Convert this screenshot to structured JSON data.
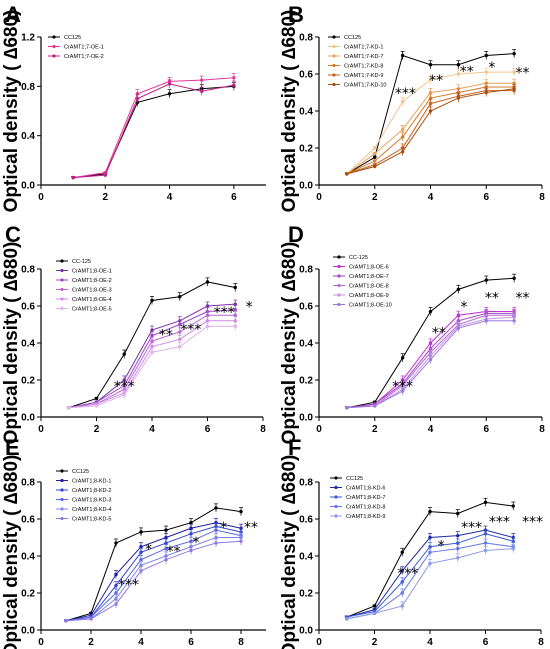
{
  "chart_data": [
    {
      "panel": "A",
      "type": "line",
      "ylabel": "Optical density ( ∆680)",
      "xticks": [
        0,
        2,
        4,
        6
      ],
      "yticks": [
        "0.0",
        "0.4",
        "0.8",
        "1.2"
      ],
      "xlim": [
        0,
        7
      ],
      "ylim": [
        0,
        1.2
      ],
      "legend": "top-left",
      "x": [
        1,
        2,
        3,
        4,
        5,
        6
      ],
      "series": [
        {
          "name": "CC125",
          "color": "#000000",
          "values": [
            0.06,
            0.09,
            0.67,
            0.74,
            0.78,
            0.8
          ]
        },
        {
          "name": "CrAMT1;7-OE-1",
          "color": "#e4389e",
          "values": [
            0.06,
            0.1,
            0.74,
            0.84,
            0.85,
            0.87
          ]
        },
        {
          "name": "CrAMT1;7-OE-2",
          "color": "#c21f85",
          "values": [
            0.06,
            0.08,
            0.7,
            0.82,
            0.76,
            0.81
          ]
        }
      ],
      "annotations": []
    },
    {
      "panel": "B",
      "type": "line",
      "ylabel": "Optical density ( ∆680)",
      "xticks": [
        0,
        2,
        4,
        6,
        8
      ],
      "yticks": [
        "0.0",
        "0.2",
        "0.4",
        "0.6",
        "0.8"
      ],
      "xlim": [
        0,
        8
      ],
      "ylim": [
        0,
        0.8
      ],
      "legend": "top-left",
      "x": [
        1,
        2,
        3,
        4,
        5,
        6,
        7
      ],
      "series": [
        {
          "name": "CC125",
          "color": "#000000",
          "values": [
            0.06,
            0.15,
            0.7,
            0.65,
            0.65,
            0.7,
            0.71
          ]
        },
        {
          "name": "CrAMT1;7-KD-1",
          "color": "#f2c48e",
          "values": [
            0.06,
            0.2,
            0.45,
            0.57,
            0.6,
            0.61,
            0.61
          ]
        },
        {
          "name": "CrAMT1;7-KD-7",
          "color": "#e8a458",
          "values": [
            0.06,
            0.17,
            0.3,
            0.5,
            0.52,
            0.55,
            0.55
          ]
        },
        {
          "name": "CrAMT1;7-KD-8",
          "color": "#d47b2a",
          "values": [
            0.06,
            0.13,
            0.26,
            0.47,
            0.5,
            0.53,
            0.53
          ]
        },
        {
          "name": "CrAMT1;7-KD-9",
          "color": "#c6611b",
          "values": [
            0.06,
            0.11,
            0.2,
            0.44,
            0.48,
            0.51,
            0.51
          ]
        },
        {
          "name": "CrAMT1;7-KD-10",
          "color": "#a64e12",
          "values": [
            0.06,
            0.1,
            0.18,
            0.4,
            0.47,
            0.5,
            0.52
          ]
        }
      ],
      "annotations": [
        {
          "x": 3.1,
          "y": 0.47,
          "text": "***"
        },
        {
          "x": 4.2,
          "y": 0.54,
          "text": "**"
        },
        {
          "x": 5.3,
          "y": 0.59,
          "text": "**"
        },
        {
          "x": 6.2,
          "y": 0.61,
          "text": "*"
        },
        {
          "x": 7.3,
          "y": 0.58,
          "text": "**"
        }
      ]
    },
    {
      "panel": "C",
      "type": "line",
      "ylabel": "Optical density ( ∆680)",
      "xticks": [
        0,
        2,
        4,
        6,
        8
      ],
      "yticks": [
        "0.0",
        "0.2",
        "0.4",
        "0.6",
        "0.8"
      ],
      "xlim": [
        0,
        8
      ],
      "ylim": [
        0,
        0.8
      ],
      "legend": "top-left",
      "x": [
        1,
        2,
        3,
        4,
        5,
        6,
        7
      ],
      "series": [
        {
          "name": "CC-125",
          "color": "#000000",
          "values": [
            0.05,
            0.1,
            0.34,
            0.63,
            0.65,
            0.73,
            0.7
          ]
        },
        {
          "name": "CrAMT1;8-OE-1",
          "color": "#7d2fa6",
          "values": [
            0.05,
            0.08,
            0.2,
            0.47,
            0.52,
            0.6,
            0.61
          ]
        },
        {
          "name": "CrAMT1;8-OE-2",
          "color": "#9a46c4",
          "values": [
            0.05,
            0.08,
            0.17,
            0.44,
            0.5,
            0.57,
            0.58
          ]
        },
        {
          "name": "CrAMT1;8-OE-3",
          "color": "#b765d8",
          "values": [
            0.05,
            0.07,
            0.15,
            0.41,
            0.46,
            0.55,
            0.55
          ]
        },
        {
          "name": "CrAMT1;8-OE-4",
          "color": "#cf8ae6",
          "values": [
            0.05,
            0.07,
            0.13,
            0.38,
            0.42,
            0.52,
            0.52
          ]
        },
        {
          "name": "CrAMT1;8-OE-5",
          "color": "#e2b1ef",
          "values": [
            0.05,
            0.06,
            0.12,
            0.35,
            0.38,
            0.49,
            0.49
          ]
        }
      ],
      "annotations": [
        {
          "x": 3.0,
          "y": 0.14,
          "text": "***"
        },
        {
          "x": 4.5,
          "y": 0.42,
          "text": "**"
        },
        {
          "x": 5.4,
          "y": 0.45,
          "text": "***"
        },
        {
          "x": 6.6,
          "y": 0.54,
          "text": "***"
        },
        {
          "x": 7.5,
          "y": 0.57,
          "text": "*"
        }
      ]
    },
    {
      "panel": "D",
      "type": "line",
      "ylabel": "Optical density ( ∆680)",
      "xticks": [
        0,
        2,
        4,
        6,
        8
      ],
      "yticks": [
        "0.0",
        "0.2",
        "0.4",
        "0.6",
        "0.8"
      ],
      "xlim": [
        0,
        8
      ],
      "ylim": [
        0,
        0.8
      ],
      "legend": "top-left",
      "x": [
        1,
        2,
        3,
        4,
        5,
        6,
        7
      ],
      "series": [
        {
          "name": "CC-125",
          "color": "#000000",
          "values": [
            0.05,
            0.08,
            0.32,
            0.57,
            0.69,
            0.74,
            0.75
          ]
        },
        {
          "name": "CrAMT1;8-OE-6",
          "color": "#c22fd2",
          "values": [
            0.05,
            0.07,
            0.2,
            0.4,
            0.55,
            0.57,
            0.57
          ]
        },
        {
          "name": "CrAMT1;8-OE-7",
          "color": "#a044c4",
          "values": [
            0.05,
            0.07,
            0.18,
            0.37,
            0.52,
            0.56,
            0.56
          ]
        },
        {
          "name": "CrAMT1;8-OE-8",
          "color": "#b36ad6",
          "values": [
            0.05,
            0.06,
            0.17,
            0.35,
            0.5,
            0.55,
            0.55
          ]
        },
        {
          "name": "CrAMT1;8-OE-9",
          "color": "#c891e3",
          "values": [
            0.05,
            0.06,
            0.15,
            0.33,
            0.49,
            0.53,
            0.54
          ]
        },
        {
          "name": "CrAMT1;8-OE-10",
          "color": "#9a7ae0",
          "values": [
            0.05,
            0.06,
            0.14,
            0.31,
            0.48,
            0.52,
            0.52
          ]
        }
      ],
      "annotations": [
        {
          "x": 3.0,
          "y": 0.14,
          "text": "***"
        },
        {
          "x": 4.3,
          "y": 0.43,
          "text": "**"
        },
        {
          "x": 5.2,
          "y": 0.57,
          "text": "*"
        },
        {
          "x": 6.2,
          "y": 0.62,
          "text": "**"
        },
        {
          "x": 7.3,
          "y": 0.62,
          "text": "**"
        }
      ]
    },
    {
      "panel": "E",
      "type": "line",
      "ylabel": "Optical density ( ∆680)",
      "xticks": [
        0,
        2,
        4,
        6,
        8
      ],
      "yticks": [
        "0.0",
        "0.2",
        "0.4",
        "0.6",
        "0.8"
      ],
      "xlim": [
        0,
        9
      ],
      "ylim": [
        0,
        0.8
      ],
      "legend": "top-left",
      "x": [
        1,
        2,
        3,
        4,
        5,
        6,
        7,
        8
      ],
      "series": [
        {
          "name": "CC125",
          "color": "#000000",
          "values": [
            0.05,
            0.09,
            0.47,
            0.53,
            0.54,
            0.58,
            0.66,
            0.64
          ]
        },
        {
          "name": "CrAMT1;8-KD-1",
          "color": "#1b1fa6",
          "values": [
            0.05,
            0.08,
            0.3,
            0.45,
            0.5,
            0.55,
            0.58,
            0.55
          ]
        },
        {
          "name": "CrAMT1;8-KD-2",
          "color": "#3044d4",
          "values": [
            0.05,
            0.07,
            0.24,
            0.42,
            0.47,
            0.52,
            0.56,
            0.53
          ]
        },
        {
          "name": "CrAMT1;8-KD-3",
          "color": "#5a66e0",
          "values": [
            0.05,
            0.07,
            0.2,
            0.38,
            0.44,
            0.48,
            0.54,
            0.51
          ]
        },
        {
          "name": "CrAMT1;8-KD-4",
          "color": "#7f87e8",
          "values": [
            0.05,
            0.06,
            0.17,
            0.35,
            0.4,
            0.45,
            0.5,
            0.5
          ]
        },
        {
          "name": "CrAMT1;8-KD-5",
          "color": "#8f7ae0",
          "values": [
            0.05,
            0.06,
            0.14,
            0.32,
            0.38,
            0.43,
            0.47,
            0.48
          ]
        }
      ],
      "annotations": [
        {
          "x": 3.5,
          "y": 0.22,
          "text": "***"
        },
        {
          "x": 4.3,
          "y": 0.41,
          "text": "*"
        },
        {
          "x": 5.3,
          "y": 0.4,
          "text": "**"
        },
        {
          "x": 6.2,
          "y": 0.45,
          "text": "*"
        },
        {
          "x": 7.3,
          "y": 0.53,
          "text": "*"
        },
        {
          "x": 8.4,
          "y": 0.53,
          "text": "**"
        }
      ]
    },
    {
      "panel": "F",
      "type": "line",
      "ylabel": "Optical density ( ∆680)",
      "xticks": [
        0,
        2,
        4,
        6,
        8
      ],
      "yticks": [
        "0.0",
        "0.2",
        "0.4",
        "0.6",
        "0.8"
      ],
      "xlim": [
        0,
        8
      ],
      "ylim": [
        0,
        0.8
      ],
      "legend": "top-left",
      "x": [
        1,
        2,
        3,
        4,
        5,
        6,
        7
      ],
      "series": [
        {
          "name": "CC125",
          "color": "#000000",
          "values": [
            0.07,
            0.13,
            0.42,
            0.64,
            0.63,
            0.69,
            0.67
          ]
        },
        {
          "name": "CrAMT1;8-KD-6",
          "color": "#1b2aa6",
          "values": [
            0.07,
            0.11,
            0.32,
            0.5,
            0.51,
            0.54,
            0.5
          ]
        },
        {
          "name": "CrAMT1;8-KD-7",
          "color": "#3a5ad8",
          "values": [
            0.07,
            0.1,
            0.26,
            0.45,
            0.47,
            0.52,
            0.48
          ]
        },
        {
          "name": "CrAMT1;8-KD-8",
          "color": "#6478e3",
          "values": [
            0.06,
            0.09,
            0.2,
            0.42,
            0.44,
            0.47,
            0.45
          ]
        },
        {
          "name": "CrAMT1;8-KD-9",
          "color": "#8d9ae8",
          "values": [
            0.06,
            0.09,
            0.13,
            0.36,
            0.39,
            0.43,
            0.44
          ]
        }
      ],
      "annotations": [
        {
          "x": 3.2,
          "y": 0.28,
          "text": "***"
        },
        {
          "x": 4.4,
          "y": 0.43,
          "text": "*"
        },
        {
          "x": 5.5,
          "y": 0.53,
          "text": "***"
        },
        {
          "x": 6.5,
          "y": 0.56,
          "text": "***"
        },
        {
          "x": 7.7,
          "y": 0.56,
          "text": "***"
        }
      ]
    }
  ]
}
